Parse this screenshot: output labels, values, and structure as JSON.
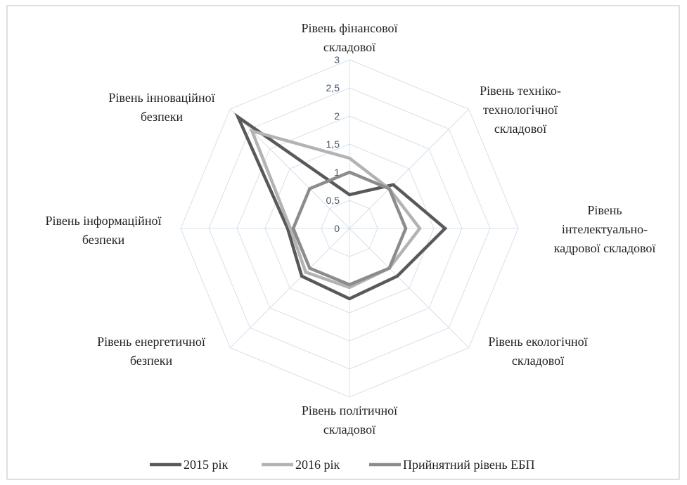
{
  "chart_data": {
    "type": "radar",
    "categories": [
      [
        "Рівень фінансової",
        "складової"
      ],
      [
        "Рівень техніко-",
        "технологічної",
        "складової"
      ],
      [
        "Рівень",
        "інтелектуально-",
        "кадрової складової"
      ],
      [
        "Рівень екологічної",
        "складової"
      ],
      [
        "Рівень політичної",
        "складової"
      ],
      [
        "Рівень енергетичної",
        "безпеки"
      ],
      [
        "Рівень інформаційної",
        "безпеки"
      ],
      [
        "Рівень інноваційної",
        "безпеки"
      ]
    ],
    "series": [
      {
        "name": "2015 рік",
        "color": "#595959",
        "values": [
          0.6,
          1.1,
          1.7,
          1.2,
          1.25,
          1.2,
          1.1,
          2.8
        ]
      },
      {
        "name": "2016 рік",
        "color": "#b3b3b3",
        "values": [
          1.25,
          1.0,
          1.25,
          1.0,
          1.05,
          1.1,
          1.05,
          2.45
        ]
      },
      {
        "name": "Прийнятний рівень ЕБП",
        "color": "#8c8c8c",
        "values": [
          1,
          1,
          1,
          1,
          1,
          1,
          1,
          1
        ]
      }
    ],
    "rlim": [
      0,
      3
    ],
    "rticks": [
      0,
      {
        "value": 0.5,
        "label": "0,5"
      },
      1,
      {
        "value": 1.5,
        "label": "1,5"
      },
      2,
      {
        "value": 2.5,
        "label": "2,5"
      },
      3
    ],
    "grid": true,
    "legend": "bottom"
  }
}
